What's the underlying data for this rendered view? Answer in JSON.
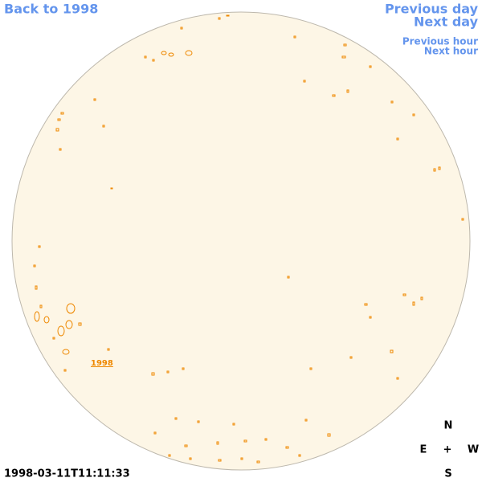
{
  "navigation": {
    "back": "Back to 1998",
    "previous_day": "Previous day",
    "next_day": "Next day",
    "previous_hour": "Previous hour",
    "next_hour": "Next hour"
  },
  "disk": {
    "year_label": "1998",
    "timestamp": "1998-03-11T11:11:33",
    "compass": {
      "north": "N",
      "east": "E",
      "center": "+",
      "west": "W",
      "south": "S"
    }
  }
}
